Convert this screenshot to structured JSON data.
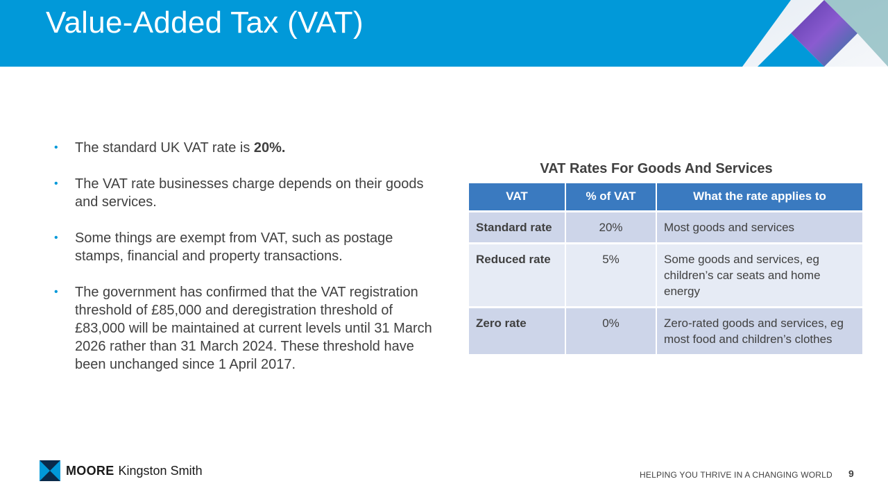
{
  "header": {
    "title": "Value-Added Tax (VAT)"
  },
  "bullets": {
    "b1_text": "The standard UK VAT rate is ",
    "b1_bold": "20%.",
    "b2": "The VAT rate businesses charge depends on their goods and services.",
    "b3": "Some things are exempt from VAT, such as postage stamps, financial and property transactions.",
    "b4": "The government has confirmed that the VAT registration threshold of £85,000 and deregistration threshold of £83,000 will be maintained at current levels until 31 March 2026 rather than 31 March 2024. These threshold have been unchanged since 1 April 2017."
  },
  "table": {
    "title": "VAT Rates For Goods And Services",
    "headers": [
      "VAT",
      "% of VAT",
      "What the rate applies to"
    ],
    "rows": [
      {
        "rate": "Standard rate",
        "percent": "20%",
        "applies": "Most goods and services"
      },
      {
        "rate": "Reduced rate",
        "percent": "5%",
        "applies": "Some goods and services, eg children’s car seats and home energy"
      },
      {
        "rate": "Zero rate",
        "percent": "0%",
        "applies": "Zero-rated goods and services, eg most food and children’s clothes"
      }
    ]
  },
  "footer": {
    "brand_bold": "MOORE",
    "brand_rest": "Kingston Smith",
    "tagline": "HELPING YOU THRIVE IN A CHANGING WORLD",
    "page_number": "9"
  },
  "colors": {
    "header_blue": "#0199d9",
    "table_header": "#3a7ac0",
    "row_light": "#e6ebf5",
    "row_dark": "#cdd5e9"
  },
  "icons": [
    "moore-logo-icon",
    "bullet-dot-icon"
  ]
}
